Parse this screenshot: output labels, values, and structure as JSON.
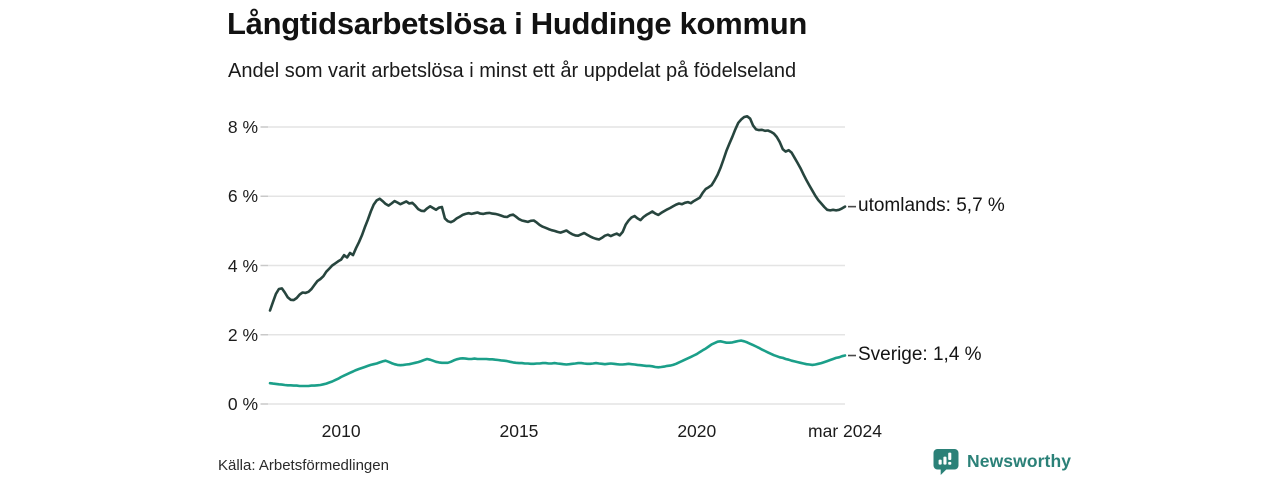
{
  "chart_data": {
    "type": "line",
    "title": "Långtidsarbetslösa i Huddinge kommun",
    "subtitle": "Andel som varit arbetslösa i minst ett år uppdelat på födelseland",
    "grid": true,
    "legend_position": "right-of-line-end",
    "x_axis": {
      "start_year": 2008,
      "end_year": 2024.1667,
      "ticks": [
        {
          "label": "2010",
          "year": 2010
        },
        {
          "label": "2015",
          "year": 2015
        },
        {
          "label": "2020",
          "year": 2020
        },
        {
          "label": "mar 2024",
          "year": 2024.1667
        }
      ]
    },
    "y_axis": {
      "unit": "%",
      "min": 0,
      "max": 8.6,
      "ticks": [
        {
          "value": 0,
          "label": "0 %"
        },
        {
          "value": 2,
          "label": "2 %"
        },
        {
          "value": 4,
          "label": "4 %"
        },
        {
          "value": 6,
          "label": "6 %"
        },
        {
          "value": 8,
          "label": "8 %"
        }
      ]
    },
    "series": [
      {
        "name": "utomlands",
        "label": "utomlands: 5,7 %",
        "last_value": "5,7 %",
        "color": "#27453e",
        "start_year": 2008,
        "step_months": 1,
        "values": [
          2.7,
          2.95,
          3.18,
          3.32,
          3.34,
          3.22,
          3.08,
          3.01,
          3.0,
          3.06,
          3.16,
          3.22,
          3.21,
          3.24,
          3.32,
          3.44,
          3.55,
          3.61,
          3.69,
          3.82,
          3.91,
          4.0,
          4.06,
          4.12,
          4.17,
          4.3,
          4.23,
          4.36,
          4.3,
          4.5,
          4.67,
          4.87,
          5.1,
          5.32,
          5.56,
          5.76,
          5.88,
          5.93,
          5.86,
          5.78,
          5.73,
          5.79,
          5.86,
          5.82,
          5.77,
          5.81,
          5.85,
          5.79,
          5.81,
          5.73,
          5.63,
          5.58,
          5.57,
          5.65,
          5.71,
          5.66,
          5.61,
          5.67,
          5.69,
          5.36,
          5.28,
          5.25,
          5.29,
          5.36,
          5.41,
          5.46,
          5.49,
          5.51,
          5.49,
          5.51,
          5.53,
          5.5,
          5.49,
          5.51,
          5.52,
          5.5,
          5.49,
          5.47,
          5.44,
          5.41,
          5.4,
          5.45,
          5.47,
          5.41,
          5.34,
          5.3,
          5.28,
          5.26,
          5.29,
          5.3,
          5.24,
          5.17,
          5.12,
          5.09,
          5.05,
          5.02,
          5.0,
          4.97,
          4.95,
          4.98,
          5.01,
          4.95,
          4.9,
          4.87,
          4.86,
          4.9,
          4.94,
          4.89,
          4.84,
          4.8,
          4.77,
          4.75,
          4.8,
          4.86,
          4.89,
          4.85,
          4.89,
          4.92,
          4.87,
          4.97,
          5.18,
          5.3,
          5.39,
          5.43,
          5.36,
          5.31,
          5.4,
          5.46,
          5.51,
          5.56,
          5.5,
          5.46,
          5.52,
          5.57,
          5.62,
          5.66,
          5.71,
          5.76,
          5.79,
          5.77,
          5.81,
          5.83,
          5.8,
          5.86,
          5.91,
          5.96,
          6.1,
          6.21,
          6.26,
          6.32,
          6.46,
          6.62,
          6.82,
          7.06,
          7.31,
          7.52,
          7.72,
          7.93,
          8.12,
          8.22,
          8.29,
          8.31,
          8.24,
          8.04,
          7.93,
          7.91,
          7.92,
          7.89,
          7.9,
          7.86,
          7.81,
          7.71,
          7.56,
          7.36,
          7.29,
          7.33,
          7.26,
          7.11,
          6.96,
          6.81,
          6.63,
          6.46,
          6.31,
          6.16,
          6.01,
          5.89,
          5.79,
          5.69,
          5.61,
          5.59,
          5.61,
          5.59,
          5.61,
          5.65,
          5.7
        ]
      },
      {
        "name": "Sverige",
        "label": "Sverige: 1,4 %",
        "last_value": "1,4 %",
        "color": "#1b9f89",
        "start_year": 2008,
        "step_months": 1,
        "values": [
          0.6,
          0.59,
          0.58,
          0.57,
          0.56,
          0.55,
          0.54,
          0.54,
          0.53,
          0.53,
          0.52,
          0.52,
          0.52,
          0.52,
          0.53,
          0.53,
          0.54,
          0.55,
          0.57,
          0.59,
          0.62,
          0.65,
          0.69,
          0.73,
          0.78,
          0.82,
          0.86,
          0.9,
          0.94,
          0.98,
          1.01,
          1.04,
          1.07,
          1.1,
          1.13,
          1.15,
          1.17,
          1.2,
          1.23,
          1.25,
          1.22,
          1.18,
          1.15,
          1.13,
          1.12,
          1.13,
          1.14,
          1.15,
          1.17,
          1.19,
          1.21,
          1.24,
          1.27,
          1.3,
          1.28,
          1.25,
          1.22,
          1.2,
          1.19,
          1.19,
          1.19,
          1.22,
          1.26,
          1.29,
          1.31,
          1.32,
          1.31,
          1.3,
          1.3,
          1.31,
          1.3,
          1.3,
          1.3,
          1.3,
          1.29,
          1.29,
          1.28,
          1.27,
          1.26,
          1.25,
          1.24,
          1.22,
          1.2,
          1.19,
          1.18,
          1.18,
          1.17,
          1.17,
          1.16,
          1.16,
          1.17,
          1.17,
          1.18,
          1.18,
          1.17,
          1.17,
          1.18,
          1.17,
          1.16,
          1.15,
          1.14,
          1.15,
          1.16,
          1.17,
          1.18,
          1.18,
          1.17,
          1.16,
          1.16,
          1.17,
          1.18,
          1.17,
          1.16,
          1.15,
          1.16,
          1.17,
          1.16,
          1.15,
          1.14,
          1.14,
          1.15,
          1.16,
          1.15,
          1.14,
          1.13,
          1.12,
          1.11,
          1.1,
          1.1,
          1.09,
          1.07,
          1.06,
          1.07,
          1.08,
          1.1,
          1.11,
          1.13,
          1.16,
          1.2,
          1.24,
          1.28,
          1.32,
          1.36,
          1.4,
          1.44,
          1.5,
          1.55,
          1.6,
          1.66,
          1.72,
          1.76,
          1.8,
          1.81,
          1.79,
          1.77,
          1.77,
          1.78,
          1.8,
          1.82,
          1.83,
          1.81,
          1.78,
          1.74,
          1.7,
          1.66,
          1.62,
          1.57,
          1.53,
          1.49,
          1.45,
          1.41,
          1.38,
          1.35,
          1.33,
          1.3,
          1.28,
          1.25,
          1.23,
          1.21,
          1.19,
          1.17,
          1.15,
          1.14,
          1.13,
          1.14,
          1.16,
          1.18,
          1.21,
          1.24,
          1.27,
          1.3,
          1.33,
          1.35,
          1.38,
          1.4
        ]
      }
    ]
  },
  "footer": {
    "source": "Källa: Arbetsförmedlingen",
    "logo": {
      "text": "Newsworthy",
      "color": "#2b8178",
      "icon": "newsworthy-speech-bubble-bar-chart-icon"
    }
  },
  "style": {
    "gridline_color": "#e4e4e4",
    "tick_color": "#c9c9c9",
    "connector_color": "#4a4a4a",
    "background": "#ffffff"
  }
}
